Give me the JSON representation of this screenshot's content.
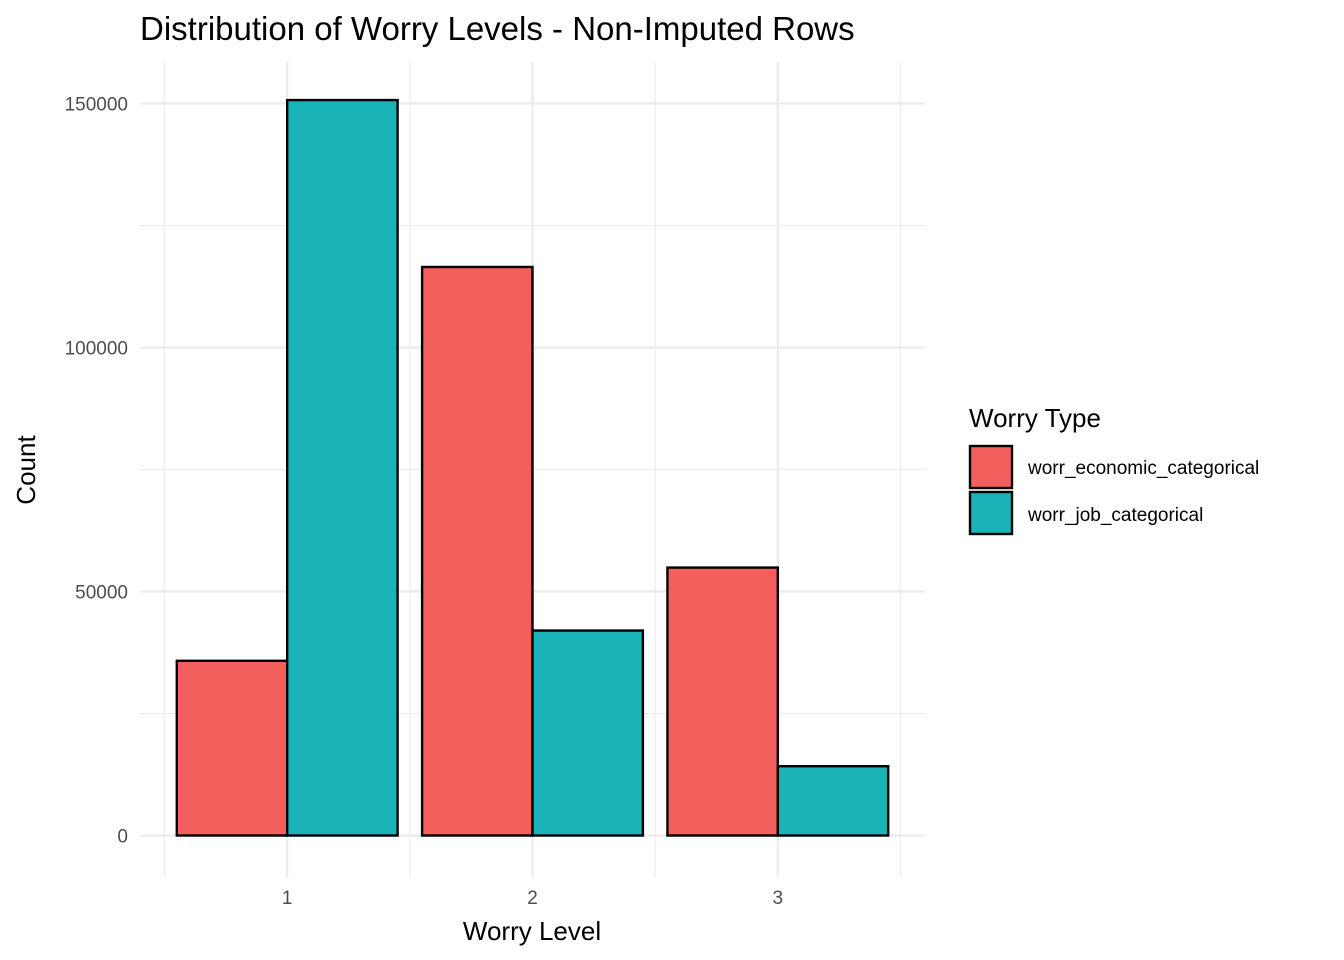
{
  "chart_data": {
    "type": "bar",
    "title": "Distribution of Worry Levels - Non-Imputed Rows",
    "xlabel": "Worry Level",
    "ylabel": "Count",
    "categories": [
      "1",
      "2",
      "3"
    ],
    "series": [
      {
        "name": "worr_economic_categorical",
        "color": "#F25F5C",
        "values": [
          35800,
          116500,
          54900
        ]
      },
      {
        "name": "worr_job_categorical",
        "color": "#1AB3B8",
        "values": [
          150700,
          42000,
          14200
        ]
      }
    ],
    "ylim": [
      -8500,
      158500
    ],
    "yticks": [
      0,
      50000,
      100000,
      150000
    ],
    "ytick_labels": [
      "0",
      "50000",
      "100000",
      "150000"
    ],
    "legend_title": "Worry Type",
    "legend_position": "right",
    "grid": true
  }
}
